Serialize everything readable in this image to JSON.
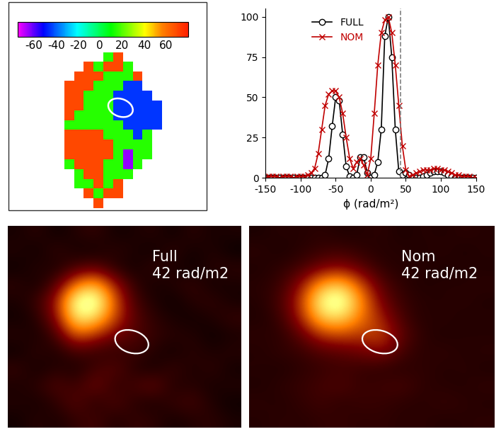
{
  "chart_data": [
    {
      "type": "heatmap",
      "cells": [
        [
          null,
          null,
          null,
          null,
          null,
          15,
          70,
          null,
          null,
          null,
          null,
          null
        ],
        [
          null,
          null,
          null,
          70,
          15,
          70,
          70,
          15,
          null,
          null,
          null,
          null
        ],
        [
          null,
          null,
          70,
          70,
          70,
          15,
          15,
          15,
          70,
          null,
          null,
          null
        ],
        [
          null,
          70,
          70,
          70,
          15,
          15,
          15,
          -45,
          -45,
          null,
          null,
          null
        ],
        [
          null,
          70,
          70,
          15,
          15,
          15,
          -45,
          -45,
          -45,
          -45,
          null,
          null
        ],
        [
          null,
          70,
          70,
          15,
          15,
          15,
          -45,
          -45,
          -45,
          -45,
          -45,
          null
        ],
        [
          null,
          70,
          15,
          15,
          15,
          15,
          -45,
          -45,
          -45,
          -45,
          -45,
          null
        ],
        [
          null,
          15,
          15,
          15,
          15,
          15,
          15,
          -45,
          -45,
          -45,
          -45,
          null
        ],
        [
          null,
          70,
          70,
          70,
          70,
          15,
          15,
          15,
          -45,
          15,
          null,
          null
        ],
        [
          null,
          70,
          70,
          70,
          70,
          70,
          15,
          15,
          15,
          15,
          null,
          null
        ],
        [
          null,
          70,
          70,
          70,
          70,
          70,
          15,
          -65,
          15,
          15,
          null,
          null
        ],
        [
          null,
          15,
          70,
          70,
          70,
          15,
          15,
          -65,
          15,
          null,
          null,
          null
        ],
        [
          null,
          null,
          15,
          70,
          70,
          15,
          15,
          15,
          null,
          null,
          null,
          null
        ],
        [
          null,
          null,
          15,
          15,
          70,
          15,
          70,
          null,
          null,
          null,
          null,
          null
        ],
        [
          null,
          null,
          null,
          70,
          15,
          70,
          70,
          null,
          null,
          null,
          null,
          null
        ],
        [
          null,
          null,
          null,
          null,
          70,
          null,
          null,
          null,
          null,
          null,
          null,
          null
        ]
      ],
      "colorbar": {
        "range": [
          -75,
          80
        ],
        "ticks": [
          -60,
          -40,
          -20,
          0,
          20,
          40,
          60
        ]
      },
      "tick_labels": false
    },
    {
      "type": "line",
      "x": [
        -150,
        -145,
        -140,
        -135,
        -130,
        -125,
        -120,
        -115,
        -110,
        -105,
        -100,
        -95,
        -90,
        -85,
        -80,
        -75,
        -70,
        -65,
        -60,
        -55,
        -50,
        -45,
        -40,
        -35,
        -30,
        -25,
        -20,
        -15,
        -10,
        -5,
        0,
        5,
        10,
        15,
        20,
        25,
        30,
        35,
        40,
        45,
        50,
        55,
        60,
        65,
        70,
        75,
        80,
        85,
        90,
        95,
        100,
        105,
        110,
        115,
        120,
        125,
        130,
        135,
        140,
        145,
        150
      ],
      "series": [
        {
          "name": "FULL",
          "color": "#000000",
          "marker": "o",
          "line_style": "solid",
          "values": [
            0,
            0,
            0,
            0,
            0,
            0,
            0,
            0,
            0,
            0,
            0,
            0,
            0,
            0,
            0,
            0,
            0,
            2,
            12,
            32,
            50,
            48,
            27,
            7,
            1,
            0,
            2,
            13,
            13,
            3,
            0,
            2,
            10,
            30,
            88,
            100,
            75,
            30,
            4,
            2,
            3,
            2,
            0,
            0,
            0,
            1,
            2,
            3,
            4,
            4,
            4,
            3,
            2,
            1,
            0,
            0,
            0,
            0,
            0,
            0,
            0
          ]
        },
        {
          "name": "NOM",
          "color": "#c00000",
          "marker": "x",
          "line_style": "solid",
          "values": [
            0,
            1,
            1,
            1,
            0,
            1,
            1,
            1,
            0,
            1,
            1,
            1,
            2,
            3,
            6,
            15,
            30,
            45,
            52,
            54,
            54,
            50,
            40,
            25,
            12,
            6,
            10,
            12,
            8,
            2,
            12,
            40,
            70,
            90,
            98,
            100,
            90,
            70,
            45,
            20,
            5,
            1,
            2,
            3,
            4,
            5,
            5,
            5,
            6,
            6,
            5,
            5,
            4,
            3,
            2,
            2,
            1,
            1,
            1,
            0,
            0
          ]
        }
      ],
      "xlabel": "ϕ (rad/m²)",
      "xlim": [
        -150,
        150
      ],
      "xticks": [
        -150,
        -100,
        -50,
        0,
        50,
        100,
        150
      ],
      "ylim": [
        0,
        105
      ],
      "yticks": [
        0,
        25,
        50,
        75,
        100
      ],
      "legend": "upper left",
      "reference_line_x": 42
    },
    {
      "type": "heatmap",
      "annotation": "Full\n42 rad/m2",
      "cells": [
        [
          5,
          10,
          3,
          8,
          12,
          4,
          6,
          9,
          3,
          10,
          5,
          7
        ],
        [
          8,
          3,
          12,
          5,
          4,
          10,
          7,
          3,
          11,
          4,
          8,
          2
        ],
        [
          3,
          9,
          5,
          15,
          20,
          8,
          4,
          12,
          6,
          3,
          9,
          10
        ],
        [
          10,
          4,
          18,
          55,
          70,
          35,
          10,
          5,
          8,
          12,
          4,
          6
        ],
        [
          6,
          12,
          35,
          95,
          100,
          50,
          15,
          7,
          3,
          9,
          11,
          5
        ],
        [
          4,
          8,
          30,
          85,
          80,
          45,
          20,
          10,
          6,
          4,
          7,
          12
        ],
        [
          9,
          5,
          15,
          50,
          40,
          25,
          18,
          12,
          9,
          8,
          3,
          6
        ],
        [
          3,
          11,
          6,
          15,
          12,
          10,
          14,
          8,
          4,
          10,
          6,
          9
        ],
        [
          12,
          4,
          9,
          6,
          14,
          20,
          8,
          5,
          13,
          6,
          11,
          4
        ],
        [
          6,
          10,
          18,
          12,
          25,
          10,
          15,
          22,
          7,
          9,
          5,
          8
        ],
        [
          8,
          5,
          10,
          20,
          8,
          18,
          9,
          6,
          12,
          15,
          7,
          3
        ],
        [
          4,
          9,
          6,
          11,
          15,
          7,
          12,
          10,
          5,
          8,
          10,
          6
        ]
      ],
      "color_range": [
        0,
        100
      ],
      "tick_labels": false
    },
    {
      "type": "heatmap",
      "annotation": "Nom\n42 rad/m2",
      "cells": [
        [
          6,
          9,
          8,
          10,
          7,
          8,
          10,
          6,
          9,
          7,
          10,
          8
        ],
        [
          10,
          6,
          9,
          12,
          14,
          10,
          8,
          9,
          7,
          10,
          6,
          9
        ],
        [
          7,
          10,
          14,
          25,
          30,
          20,
          10,
          8,
          9,
          6,
          9,
          7
        ],
        [
          9,
          12,
          30,
          65,
          75,
          45,
          18,
          10,
          7,
          9,
          8,
          10
        ],
        [
          8,
          15,
          40,
          90,
          100,
          60,
          25,
          12,
          9,
          8,
          10,
          7
        ],
        [
          7,
          12,
          35,
          75,
          80,
          55,
          35,
          15,
          8,
          10,
          7,
          9
        ],
        [
          10,
          9,
          20,
          40,
          45,
          40,
          45,
          20,
          10,
          7,
          9,
          8
        ],
        [
          8,
          11,
          12,
          18,
          20,
          25,
          30,
          15,
          9,
          11,
          8,
          10
        ],
        [
          9,
          7,
          10,
          12,
          14,
          12,
          10,
          9,
          11,
          8,
          10,
          7
        ],
        [
          7,
          10,
          12,
          15,
          18,
          12,
          14,
          16,
          10,
          9,
          8,
          11
        ],
        [
          10,
          8,
          11,
          14,
          10,
          13,
          12,
          10,
          9,
          12,
          10,
          8
        ],
        [
          8,
          10,
          9,
          11,
          12,
          10,
          11,
          9,
          10,
          8,
          9,
          10
        ]
      ],
      "color_range": [
        0,
        100
      ],
      "tick_labels": false
    }
  ]
}
